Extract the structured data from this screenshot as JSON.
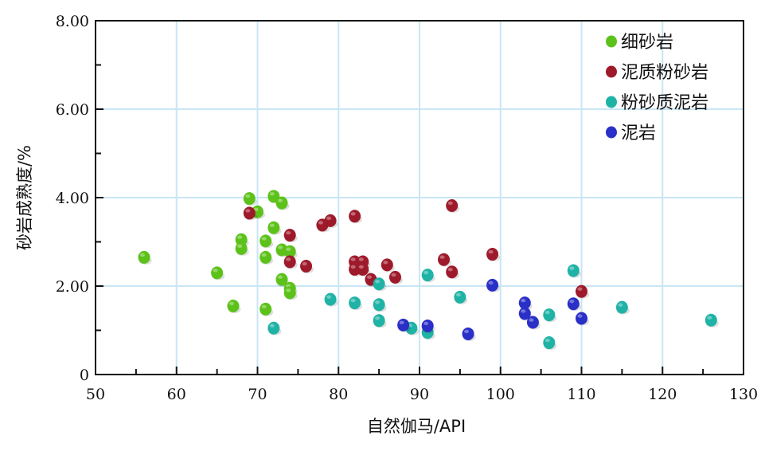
{
  "chart_data": {
    "type": "scatter",
    "xlabel": "自然伽马/API",
    "ylabel": "砂岩成熟度/%",
    "xlim": [
      50,
      130
    ],
    "ylim": [
      0,
      8
    ],
    "x_ticks": [
      "50",
      "60",
      "70",
      "80",
      "90",
      "100",
      "110",
      "120",
      "130"
    ],
    "y_ticks": [
      "0",
      "2.00",
      "4.00",
      "6.00",
      "8.00"
    ],
    "grid": true,
    "legend_position": "top-right",
    "series": [
      {
        "name": "细砂岩",
        "color": "#5cc21a",
        "points": [
          [
            56,
            2.65
          ],
          [
            65,
            2.3
          ],
          [
            67,
            1.55
          ],
          [
            68,
            3.05
          ],
          [
            68,
            2.85
          ],
          [
            69,
            3.98
          ],
          [
            70,
            3.68
          ],
          [
            71,
            3.02
          ],
          [
            71,
            2.65
          ],
          [
            71,
            1.48
          ],
          [
            72,
            4.03
          ],
          [
            72,
            3.32
          ],
          [
            73,
            3.88
          ],
          [
            73,
            2.82
          ],
          [
            73,
            2.15
          ],
          [
            74,
            2.78
          ],
          [
            74,
            1.95
          ],
          [
            74,
            1.85
          ]
        ]
      },
      {
        "name": "泥质粉砂岩",
        "color": "#9e1a2b",
        "points": [
          [
            69,
            3.65
          ],
          [
            74,
            3.15
          ],
          [
            74,
            2.55
          ],
          [
            76,
            2.45
          ],
          [
            78,
            3.38
          ],
          [
            79,
            3.48
          ],
          [
            82,
            3.58
          ],
          [
            82,
            2.55
          ],
          [
            82,
            2.38
          ],
          [
            83,
            2.55
          ],
          [
            83,
            2.38
          ],
          [
            84,
            2.15
          ],
          [
            86,
            2.48
          ],
          [
            87,
            2.2
          ],
          [
            93,
            2.6
          ],
          [
            94,
            3.82
          ],
          [
            94,
            2.32
          ],
          [
            99,
            2.72
          ],
          [
            110,
            1.88
          ]
        ]
      },
      {
        "name": "粉砂质泥岩",
        "color": "#1fb3a6",
        "points": [
          [
            72,
            1.05
          ],
          [
            79,
            1.7
          ],
          [
            82,
            1.62
          ],
          [
            85,
            2.05
          ],
          [
            85,
            1.58
          ],
          [
            85,
            1.22
          ],
          [
            89,
            1.05
          ],
          [
            91,
            2.25
          ],
          [
            91,
            0.95
          ],
          [
            95,
            1.75
          ],
          [
            106,
            1.35
          ],
          [
            106,
            0.72
          ],
          [
            109,
            2.35
          ],
          [
            115,
            1.52
          ],
          [
            126,
            1.23
          ]
        ]
      },
      {
        "name": "泥岩",
        "color": "#2a2fc8",
        "points": [
          [
            88,
            1.12
          ],
          [
            91,
            1.1
          ],
          [
            96,
            0.92
          ],
          [
            99,
            2.02
          ],
          [
            103,
            1.62
          ],
          [
            103,
            1.38
          ],
          [
            104,
            1.18
          ],
          [
            109,
            1.6
          ],
          [
            110,
            1.27
          ]
        ]
      }
    ]
  }
}
